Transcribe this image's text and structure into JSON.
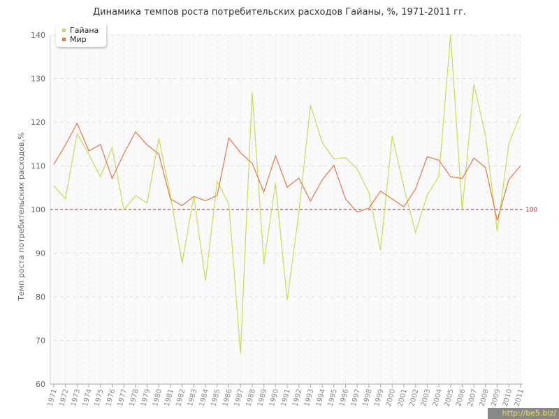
{
  "chart_data": {
    "type": "line",
    "title": "Динамика темпов роста потребительских расходов Гайаны, %, 1971-2011 гг.",
    "ylabel": "Темп роста потребительских расходов,%",
    "xlabel": "",
    "ylim": [
      60,
      140
    ],
    "yticks": [
      60,
      70,
      80,
      90,
      100,
      110,
      120,
      130,
      140
    ],
    "x": [
      "1971",
      "1972",
      "1973",
      "1974",
      "1975",
      "1976",
      "1977",
      "1978",
      "1979",
      "1980",
      "1981",
      "1982",
      "1983",
      "1984",
      "1985",
      "1986",
      "1987",
      "1988",
      "1989",
      "1990",
      "1991",
      "1992",
      "1993",
      "1994",
      "1995",
      "1996",
      "1997",
      "1998",
      "1999",
      "2000",
      "2001",
      "2002",
      "2003",
      "2004",
      "2005",
      "2006",
      "2007",
      "2008",
      "2009",
      "2010",
      "2011"
    ],
    "series": [
      {
        "name": "Гайана",
        "color": "#c5dd55",
        "values": [
          105.4,
          102.5,
          117.4,
          112.6,
          107.5,
          114.2,
          99.9,
          103.2,
          101.5,
          116.3,
          103.2,
          87.7,
          103.1,
          83.7,
          106.4,
          101.3,
          67.0,
          126.9,
          87.6,
          106.1,
          79.2,
          99.3,
          123.9,
          115.3,
          111.6,
          111.9,
          109.3,
          103.9,
          90.6,
          116.9,
          105.1,
          94.7,
          103.3,
          107.6,
          140.0,
          99.7,
          128.7,
          116.9,
          95.1,
          115.1,
          121.8
        ]
      },
      {
        "name": "Мир",
        "color": "#e8764a",
        "values": [
          110.3,
          114.8,
          119.8,
          113.4,
          114.9,
          107.1,
          112.8,
          117.8,
          114.8,
          112.7,
          102.4,
          100.9,
          103.0,
          102.0,
          103.2,
          116.4,
          113.0,
          110.6,
          104.0,
          112.3,
          105.1,
          107.2,
          101.9,
          106.8,
          110.1,
          102.4,
          99.4,
          100.3,
          104.2,
          102.4,
          100.6,
          104.7,
          112.1,
          111.3,
          107.5,
          107.1,
          111.8,
          109.6,
          97.5,
          106.9,
          110.0
        ]
      }
    ],
    "reference_line": {
      "value": 100,
      "label": "100",
      "color": "#8b2f3a"
    },
    "grid": true,
    "legend_position": "top-left"
  },
  "watermark": "http://be5.biz/"
}
